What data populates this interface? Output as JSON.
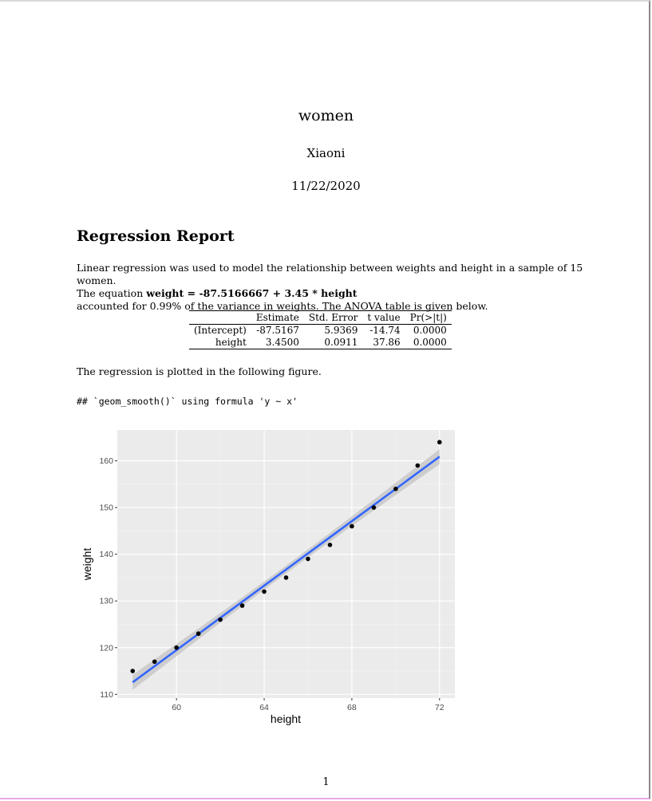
{
  "document": {
    "title": "women",
    "author": "Xiaoni",
    "date": "11/22/2020",
    "page_number": "1"
  },
  "section": {
    "heading": "Regression Report",
    "para_line1": "Linear regression was used to model the relationship between weights and height in a sample of 15 women.",
    "para_eq_prefix": "The equation ",
    "equation": "weight = -87.5166667 + 3.45 * height",
    "para_line3": "accounted for 0.99% of the variance in weights. The ANOVA table is given below."
  },
  "anova_table": {
    "headers": [
      "",
      "Estimate",
      "Std. Error",
      "t value",
      "Pr(>|t|)"
    ],
    "rows": [
      [
        "(Intercept)",
        "-87.5167",
        "5.9369",
        "-14.74",
        "0.0000"
      ],
      [
        "height",
        "3.4500",
        "0.0911",
        "37.86",
        "0.0000"
      ]
    ]
  },
  "plot_caption": "The regression is plotted in the following figure.",
  "console_message": "## `geom_smooth()` using formula 'y ~ x'",
  "chart_data": {
    "type": "scatter",
    "xlabel": "height",
    "ylabel": "weight",
    "x": [
      58,
      59,
      60,
      61,
      62,
      63,
      64,
      65,
      66,
      67,
      68,
      69,
      70,
      71,
      72
    ],
    "y": [
      115,
      117,
      120,
      123,
      126,
      129,
      132,
      135,
      139,
      142,
      146,
      150,
      154,
      159,
      164
    ],
    "fit": {
      "intercept": -87.5166667,
      "slope": 3.45,
      "method": "lm"
    },
    "xlim": [
      57.3,
      72.7
    ],
    "ylim": [
      109.2,
      166.6
    ],
    "x_ticks": [
      60,
      64,
      68,
      72
    ],
    "y_ticks": [
      110,
      120,
      130,
      140,
      150,
      160
    ],
    "grid": true,
    "panel_background": "#ebebeb",
    "point_color": "#000000",
    "line_color": "#3366ff",
    "ribbon_color": "#c8c8c8"
  }
}
